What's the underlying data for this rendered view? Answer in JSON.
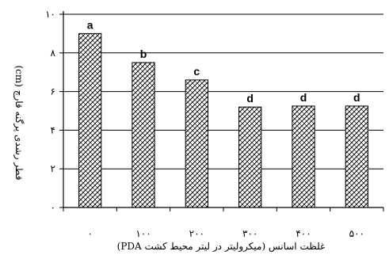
{
  "chart_data": {
    "type": "bar",
    "categories": [
      "۰",
      "۱۰۰",
      "۲۰۰",
      "۳۰۰",
      "۴۰۰",
      "۵۰۰"
    ],
    "values": [
      9.0,
      7.5,
      6.6,
      5.2,
      5.25,
      5.25
    ],
    "data_labels": [
      "a",
      "b",
      "c",
      "d",
      "d",
      "d"
    ],
    "ylim": [
      0,
      10
    ],
    "yticks": [
      0,
      2,
      4,
      6,
      8,
      10
    ],
    "ytick_labels": [
      "۰",
      "۲",
      "۴",
      "۶",
      "۸",
      "۱۰"
    ],
    "xlabel": "غلظت اسانس (میکرولیتر در لیتر محیط کشت PDA)",
    "ylabel": "قطر رشدی پرگنه قارچ (cm)",
    "title": "",
    "grid": true,
    "bar_pattern": "crosshatch"
  }
}
